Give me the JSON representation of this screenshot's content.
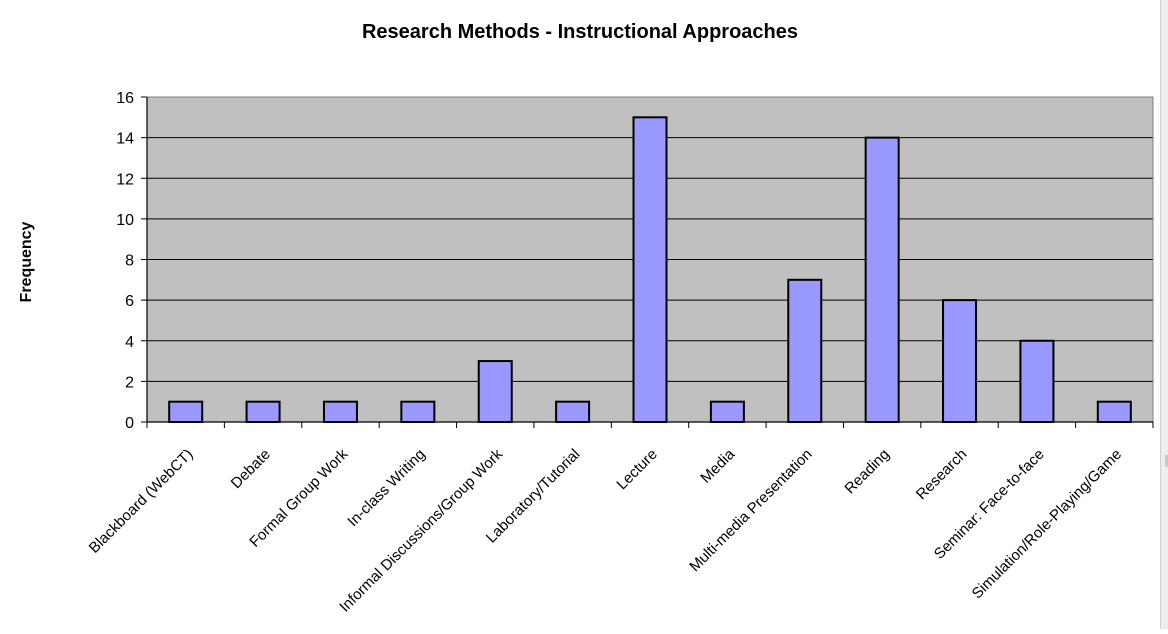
{
  "chart_data": {
    "type": "bar",
    "title": "Research Methods - Instructional Approaches",
    "xlabel": "",
    "ylabel": "Frequency",
    "ylim": [
      0,
      16
    ],
    "yticks": [
      0,
      2,
      4,
      6,
      8,
      10,
      12,
      14,
      16
    ],
    "grid": true,
    "categories": [
      "Blackboard (WebCT)",
      "Debate",
      "Formal Group Work",
      "In-class Writing",
      "Informal Discussions/Group Work",
      "Laboratory/Tutorial",
      "Lecture",
      "Media",
      "Multi-media Presentation",
      "Reading",
      "Research",
      "Seminar: Face-to-face",
      "Simulation/Role-Playing/Game"
    ],
    "values": [
      1,
      1,
      1,
      1,
      3,
      1,
      15,
      1,
      7,
      14,
      6,
      4,
      1
    ],
    "colors": {
      "bar": "#9999ff",
      "plot_background": "#c0c0c0",
      "gridline": "#000000"
    }
  }
}
